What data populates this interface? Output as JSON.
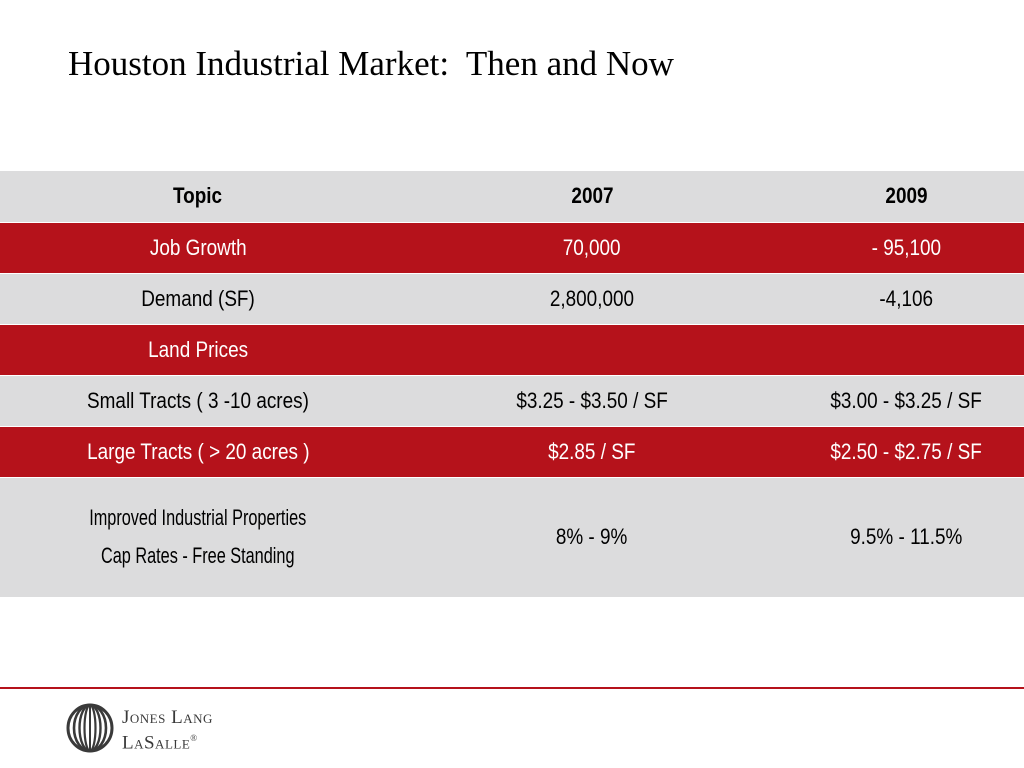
{
  "title": "Houston Industrial Market:  Then and Now",
  "table": {
    "headers": [
      "Topic",
      "2007",
      "2009"
    ],
    "rows": [
      {
        "topic": "Job Growth",
        "y2007": "70,000",
        "y2009": "- 95,100"
      },
      {
        "topic": "Demand (SF)",
        "y2007": "2,800,000",
        "y2009": "-4,106"
      },
      {
        "topic": "Land Prices",
        "y2007": "",
        "y2009": ""
      },
      {
        "topic": "Small Tracts ( 3 -10 acres)",
        "y2007": "$3.25 - $3.50 / SF",
        "y2009": "$3.00 - $3.25 / SF"
      },
      {
        "topic": "Large Tracts ( > 20 acres )",
        "y2007": "$2.85 / SF",
        "y2009": "$2.50 - $2.75 / SF"
      },
      {
        "topic_line1": "Improved Industrial Properties",
        "topic_line2": "Cap Rates - Free Standing",
        "y2007": "8% - 9%",
        "y2009": "9.5% - 11.5%"
      }
    ]
  },
  "footer": {
    "logo_line1": "Jones Lang",
    "logo_line2": "LaSalle",
    "logo_reg": "®"
  },
  "colors": {
    "accent_red": "#b5121b",
    "row_grey": "#dcdcdd",
    "text_dark": "#000000"
  },
  "icons": {
    "logo": "jones-lang-lasalle-logo-icon"
  }
}
